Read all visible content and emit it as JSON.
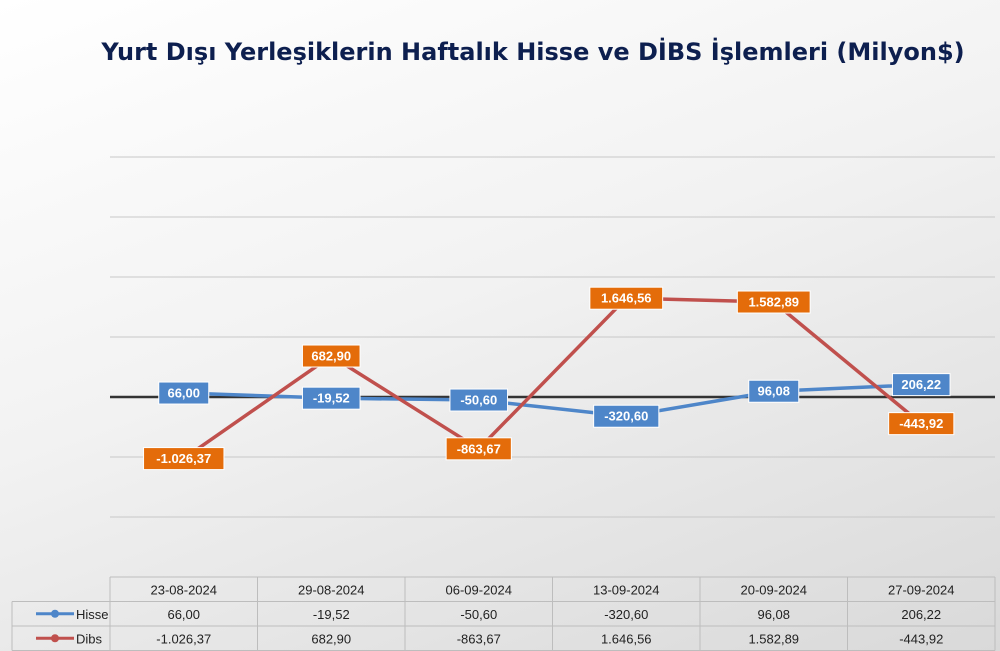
{
  "chart_data": {
    "type": "line",
    "title": "Yurt Dışı Yerleşiklerin Haftalık Hisse ve DİBS İşlemleri (Milyon$)",
    "categories": [
      "23-08-2024",
      "29-08-2024",
      "06-09-2024",
      "13-09-2024",
      "20-09-2024",
      "27-09-2024"
    ],
    "series": [
      {
        "name": "Hisse",
        "color": "#4e86c9",
        "label_color": "#4e86c9",
        "values": [
          66.0,
          -19.52,
          -50.6,
          -320.6,
          96.08,
          206.22
        ],
        "labels": [
          "66,00",
          "-19,52",
          "-50,60",
          "-320,60",
          "96,08",
          "206,22"
        ]
      },
      {
        "name": "Dibs",
        "color": "#c0504d",
        "label_color": "#e46c0a",
        "values": [
          -1026.37,
          682.9,
          -863.67,
          1646.56,
          1582.89,
          -443.92
        ],
        "labels": [
          "-1.026,37",
          "682,90",
          "-863,67",
          "1.646,56",
          "1.582,89",
          "-443,92"
        ]
      }
    ],
    "ylim": [
      -2000,
      4000
    ],
    "grid": true,
    "legend": "data-table",
    "xlabel": "",
    "ylabel": ""
  }
}
